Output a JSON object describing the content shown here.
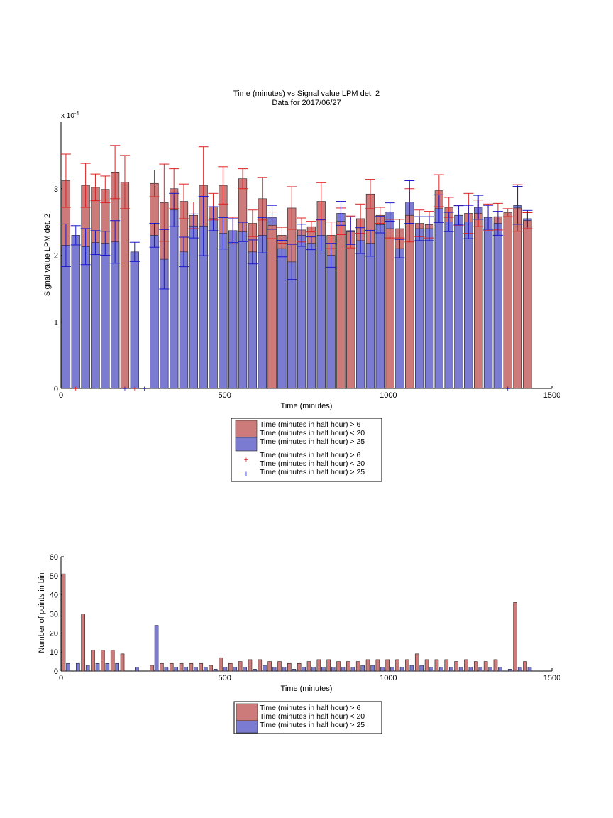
{
  "chart_data": [
    {
      "type": "bar",
      "title": "Time (minutes) vs Signal value LPM det. 2",
      "subtitle": "Data for 2017/06/27",
      "xlabel": "Time (minutes)",
      "ylabel": "Signal value LPM det. 2",
      "exponent_label": "x 10",
      "exponent_power": "-4",
      "xlim": [
        0,
        1500
      ],
      "ylim": [
        0,
        4.0
      ],
      "xticks": [
        "0",
        "500",
        "1000",
        "1500"
      ],
      "yticks": [
        "0",
        "1",
        "2",
        "3"
      ],
      "bin_width_minutes": 30,
      "grid": false,
      "legend_position": "below",
      "legend": [
        "Time (minutes in half hour) > 6\nTime (minutes in half hour) < 20",
        "Time (minutes in half hour) > 25",
        "Time (minutes in half hour) > 6\nTime (minutes in half hour) < 20",
        "Time (minutes in half hour) > 25"
      ],
      "colors": {
        "red_series": "#cc7a7a",
        "blue_series": "#7b7bd1",
        "red_error": "#dd2222",
        "blue_error": "#1a1acc"
      },
      "x": [
        15,
        45,
        75,
        105,
        135,
        165,
        195,
        225,
        255,
        285,
        315,
        345,
        375,
        405,
        435,
        465,
        495,
        525,
        555,
        585,
        615,
        645,
        675,
        705,
        735,
        765,
        795,
        825,
        855,
        885,
        915,
        945,
        975,
        1005,
        1035,
        1065,
        1095,
        1125,
        1155,
        1185,
        1215,
        1245,
        1275,
        1305,
        1335,
        1365,
        1395,
        1425
      ],
      "series": [
        {
          "values": [
            3.12,
            null,
            3.05,
            3.02,
            2.99,
            3.25,
            3.1,
            null,
            null,
            3.08,
            2.79,
            3.0,
            2.81,
            2.6,
            3.05,
            2.73,
            3.05,
            2.37,
            3.15,
            2.48,
            2.85,
            2.45,
            2.3,
            2.71,
            2.38,
            2.43,
            2.81,
            2.3,
            2.51,
            2.35,
            2.55,
            2.92,
            2.6,
            2.4,
            2.4,
            2.6,
            2.48,
            2.46,
            2.97,
            2.72,
            2.6,
            2.63,
            2.63,
            2.57,
            2.58,
            2.64,
            2.71,
            2.52
          ],
          "errors": [
            0.4,
            null,
            0.33,
            0.2,
            0.2,
            0.4,
            0.4,
            null,
            null,
            0.2,
            0.58,
            0.3,
            0.26,
            0.2,
            0.58,
            0.2,
            0.28,
            0.2,
            0.15,
            0.2,
            0.32,
            0.2,
            0.12,
            0.32,
            0.18,
            0.08,
            0.28,
            0.2,
            0.2,
            0.24,
            0.22,
            0.22,
            0.12,
            0.14,
            0.14,
            0.4,
            0.2,
            0.2,
            0.24,
            0.15,
            0.15,
            0.3,
            0.2,
            0.2,
            0.2,
            0.06,
            0.35,
            0.12
          ]
        },
        {
          "values": [
            2.15,
            2.3,
            2.13,
            2.19,
            2.18,
            2.2,
            null,
            2.05,
            null,
            2.3,
            1.94,
            2.68,
            2.05,
            2.44,
            2.44,
            2.55,
            2.33,
            2.37,
            2.35,
            2.05,
            2.3,
            2.57,
            2.1,
            1.9,
            2.3,
            2.18,
            2.3,
            2.0,
            2.63,
            2.37,
            2.22,
            2.18,
            2.46,
            2.65,
            2.1,
            2.8,
            2.4,
            2.4,
            2.7,
            2.5,
            2.6,
            2.5,
            2.72,
            2.57,
            2.48,
            null,
            2.75,
            2.55
          ]
        }
      ],
      "red_markers_x": [
        45,
        225
      ],
      "blue_markers_x": [
        195,
        255,
        1365
      ]
    },
    {
      "type": "bar",
      "xlabel": "Time (minutes)",
      "ylabel": "Number of points in bin",
      "xlim": [
        0,
        1500
      ],
      "ylim": [
        0,
        60
      ],
      "xticks": [
        "0",
        "500",
        "1000",
        "1500"
      ],
      "yticks": [
        "0",
        "10",
        "20",
        "30",
        "40",
        "50",
        "60"
      ],
      "grid": false,
      "legend_position": "below",
      "legend": [
        "Time (minutes in half hour) > 6\nTime (minutes in half hour) < 20",
        "Time (minutes in half hour) > 25"
      ],
      "x": [
        0,
        30,
        60,
        90,
        120,
        150,
        180,
        210,
        240,
        270,
        300,
        330,
        360,
        390,
        420,
        450,
        480,
        510,
        540,
        570,
        600,
        630,
        660,
        690,
        720,
        750,
        780,
        810,
        840,
        870,
        900,
        930,
        960,
        990,
        1020,
        1050,
        1080,
        1110,
        1140,
        1170,
        1200,
        1230,
        1260,
        1290,
        1320,
        1350,
        1380,
        1410
      ],
      "series": [
        {
          "values": [
            51,
            0,
            30,
            11,
            11,
            11,
            9,
            0,
            0,
            3,
            4,
            4,
            4,
            4,
            4,
            3,
            7,
            4,
            5,
            6,
            6,
            5,
            5,
            4,
            4,
            5,
            6,
            6,
            5,
            5,
            5,
            6,
            6,
            6,
            6,
            6,
            9,
            6,
            6,
            6,
            5,
            6,
            5,
            5,
            6,
            0,
            36,
            5
          ]
        },
        {
          "values": [
            4,
            4,
            3,
            4,
            4,
            4,
            0,
            2,
            0,
            24,
            2,
            2,
            2,
            2,
            2,
            1,
            2,
            2,
            2,
            1,
            3,
            2,
            2,
            1,
            2,
            2,
            2,
            2,
            2,
            2,
            3,
            3,
            2,
            2,
            2,
            3,
            3,
            2,
            2,
            2,
            2,
            2,
            2,
            2,
            2,
            1,
            2,
            2
          ]
        }
      ]
    }
  ]
}
